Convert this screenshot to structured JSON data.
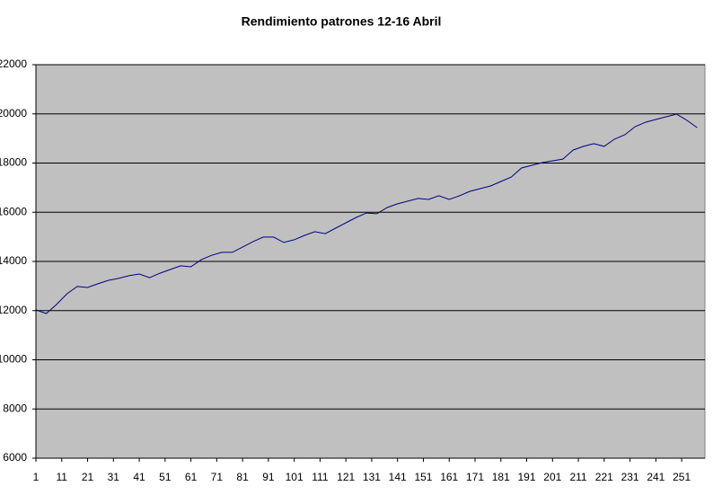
{
  "chart_data": {
    "type": "line",
    "title": "Rendimiento patrones 12-16 Abril",
    "x": [
      1,
      5,
      9,
      13,
      17,
      21,
      25,
      29,
      33,
      37,
      41,
      45,
      49,
      53,
      57,
      61,
      65,
      69,
      73,
      77,
      81,
      85,
      89,
      93,
      97,
      101,
      105,
      109,
      113,
      117,
      121,
      125,
      129,
      133,
      137,
      141,
      145,
      149,
      153,
      157,
      161,
      165,
      169,
      173,
      177,
      181,
      185,
      189,
      193,
      197,
      201,
      205,
      209,
      213,
      217,
      221,
      225,
      229,
      233,
      237,
      241,
      245,
      249,
      253,
      257
    ],
    "series": [
      {
        "name": "Rendimiento",
        "color": "#000080",
        "values": [
          12030,
          11880,
          12250,
          12680,
          12980,
          12940,
          13090,
          13230,
          13310,
          13420,
          13490,
          13340,
          13520,
          13670,
          13820,
          13780,
          14070,
          14250,
          14370,
          14370,
          14580,
          14800,
          14990,
          14990,
          14770,
          14880,
          15060,
          15210,
          15130,
          15350,
          15570,
          15790,
          15970,
          15940,
          16190,
          16340,
          16450,
          16560,
          16520,
          16670,
          16520,
          16670,
          16850,
          16960,
          17070,
          17250,
          17430,
          17800,
          17910,
          18020,
          18090,
          18160,
          18530,
          18680,
          18790,
          18680,
          18970,
          19150,
          19480,
          19660,
          19770,
          19880,
          19990,
          19740,
          19440
        ]
      }
    ],
    "xlim": [
      1,
      260
    ],
    "xticks": [
      1,
      11,
      21,
      31,
      41,
      51,
      61,
      71,
      81,
      91,
      101,
      111,
      121,
      131,
      141,
      151,
      161,
      171,
      181,
      191,
      201,
      211,
      221,
      231,
      241,
      251
    ],
    "ylim": [
      6000,
      22000
    ],
    "yticks": [
      6000,
      8000,
      10000,
      12000,
      14000,
      16000,
      18000,
      20000,
      22000
    ],
    "grid": true,
    "plot_background": "#c0c0c0"
  }
}
